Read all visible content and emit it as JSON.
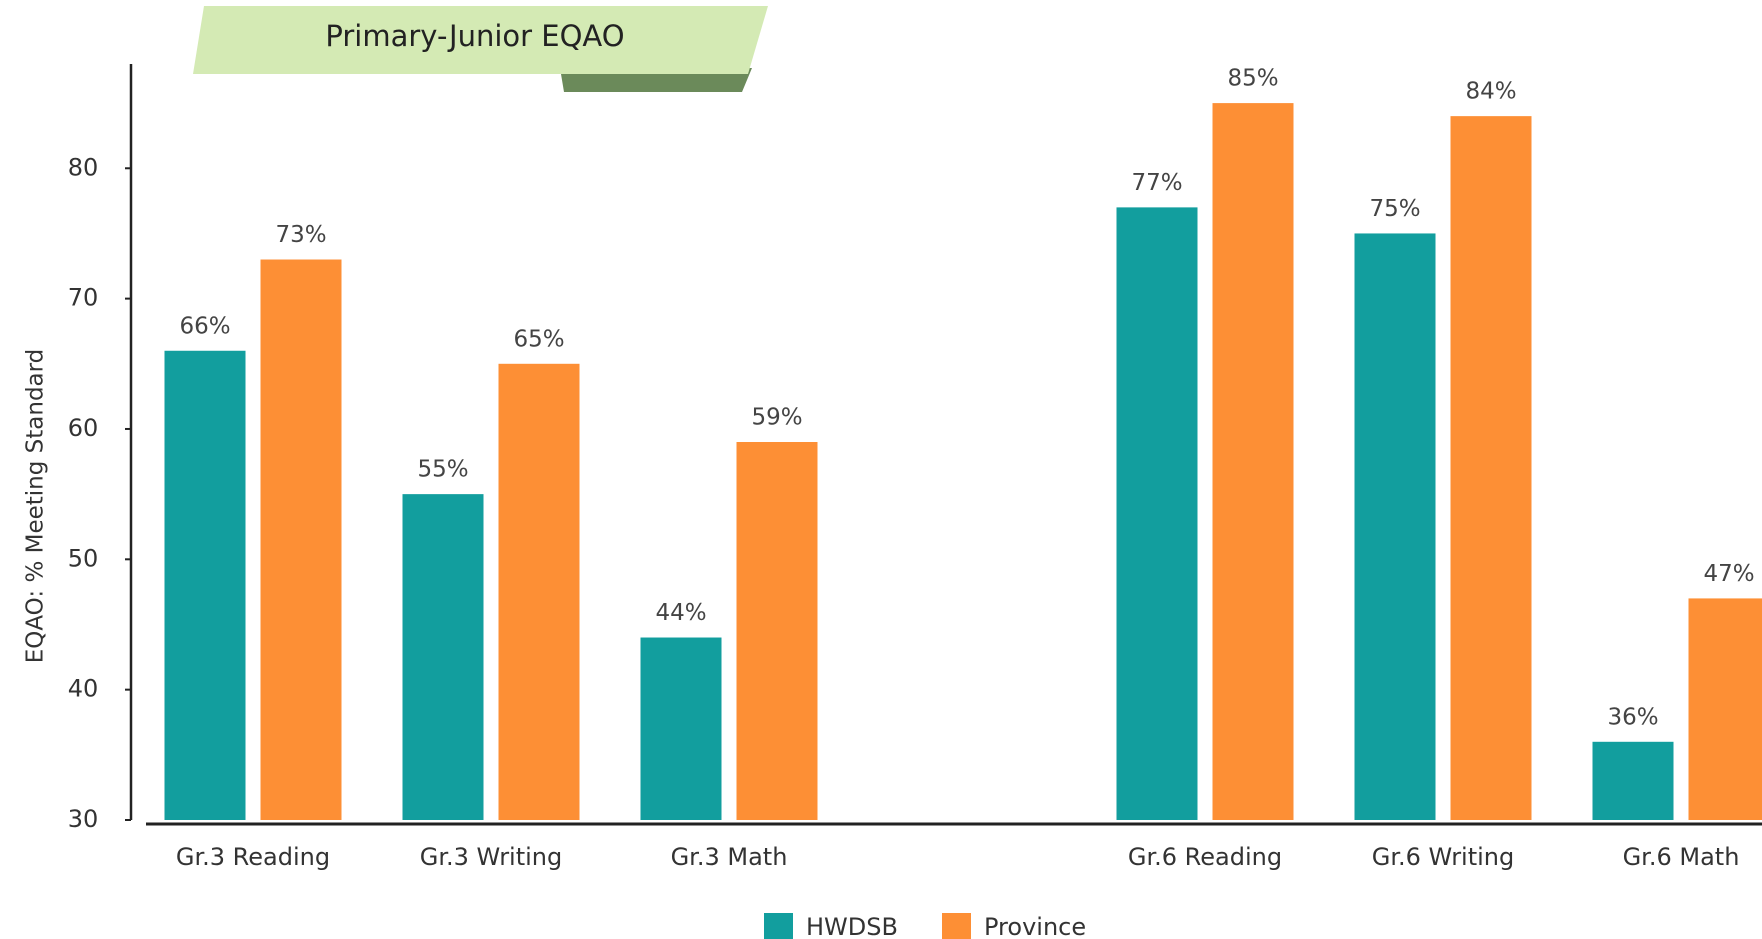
{
  "chart_data": {
    "type": "bar",
    "title": "Primary-Junior EQAO",
    "y_label": "EQAO: % Meeting Standard",
    "categories": [
      "Gr.3 Reading",
      "Gr.3 Writing",
      "Gr.3 Math",
      "Gr.6 Reading",
      "Gr.6 Writing",
      "Gr.6 Math"
    ],
    "series": [
      {
        "name": "HWDSB",
        "color": "#129e9e",
        "values": [
          66,
          55,
          44,
          77,
          75,
          36
        ],
        "value_labels": [
          "66%",
          "55%",
          "44%",
          "77%",
          "75%",
          "36%"
        ]
      },
      {
        "name": "Province",
        "color": "#fd8f35",
        "values": [
          73,
          65,
          59,
          85,
          84,
          47
        ],
        "value_labels": [
          "73%",
          "65%",
          "59%",
          "85%",
          "84%",
          "47%"
        ]
      }
    ],
    "ylim": [
      30,
      88
    ],
    "yticks": [
      30,
      40,
      50,
      60,
      70,
      80
    ],
    "grid": false
  }
}
